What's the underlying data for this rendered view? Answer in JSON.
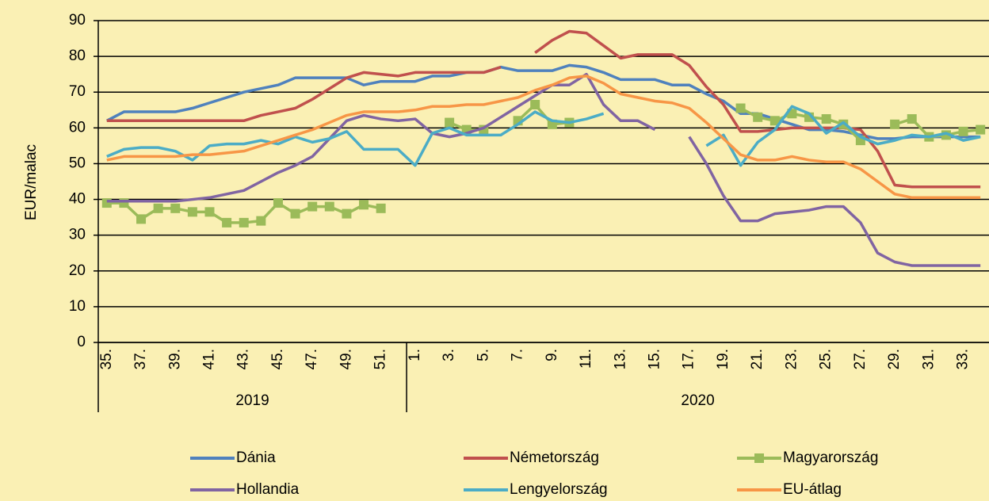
{
  "chart_data": {
    "type": "line",
    "y_axis_label": "EUR/malac",
    "ylim": [
      0,
      90
    ],
    "yticks": [
      0,
      10,
      20,
      30,
      40,
      50,
      60,
      70,
      80,
      90
    ],
    "grid": true,
    "legend_position": "bottom",
    "categories": [
      "35.",
      null,
      "37.",
      null,
      "39.",
      null,
      "41.",
      null,
      "43.",
      null,
      "45.",
      null,
      "47.",
      null,
      "49.",
      null,
      "51.",
      null,
      "1.",
      null,
      "3.",
      null,
      "5.",
      null,
      "7.",
      null,
      "9.",
      null,
      "11.",
      null,
      "13.",
      null,
      "15.",
      null,
      "17.",
      null,
      "19.",
      null,
      "21.",
      null,
      "23.",
      null,
      "25.",
      null,
      "27.",
      null,
      "29.",
      null,
      "31.",
      null,
      "33.",
      null
    ],
    "category_groups": [
      {
        "label": "2019",
        "size": 18
      },
      {
        "label": "2020",
        "size": 34
      }
    ],
    "series": [
      {
        "name": "Dánia",
        "color": "#4f81bd",
        "values": [
          62,
          64.5,
          64.5,
          64.5,
          64.5,
          65.5,
          67,
          68.5,
          70,
          71,
          72,
          74,
          74,
          74,
          74,
          72,
          73,
          73,
          73,
          74.5,
          74.5,
          75.5,
          75.5,
          77,
          76,
          76,
          76,
          77.5,
          77,
          75.5,
          73.5,
          73.5,
          73.5,
          72,
          72,
          69.5,
          67.5,
          64,
          64,
          62.5,
          61,
          59.5,
          59.5,
          59,
          58,
          57,
          57,
          57.5,
          57.5,
          57.5,
          57.5,
          57.5
        ]
      },
      {
        "name": "Németország",
        "color": "#c0504d",
        "values": [
          62,
          62,
          62,
          62,
          62,
          62,
          62,
          62,
          62,
          63.5,
          64.5,
          65.5,
          68,
          71,
          74,
          75.5,
          75,
          74.5,
          75.5,
          75.5,
          75.5,
          75.5,
          75.5,
          77,
          null,
          81,
          84.5,
          87,
          86.5,
          83,
          79.5,
          80.5,
          80.5,
          80.5,
          77.5,
          71.5,
          66.5,
          59,
          59,
          59.5,
          60,
          60,
          60,
          60,
          59.5,
          53.5,
          44,
          43.5,
          43.5,
          43.5,
          43.5,
          43.5
        ]
      },
      {
        "name": "Magyarország",
        "color": "#9bbb59",
        "marker": "square",
        "values": [
          39,
          39,
          34.5,
          37.5,
          37.5,
          36.5,
          36.5,
          33.5,
          33.5,
          34,
          39,
          36,
          38,
          38,
          36,
          38.5,
          37.5,
          null,
          null,
          null,
          61.5,
          59.5,
          59.5,
          null,
          62,
          66.5,
          61,
          61.5,
          null,
          null,
          null,
          null,
          null,
          null,
          null,
          null,
          null,
          65.5,
          63,
          62,
          64,
          63,
          62.5,
          61,
          56.5,
          null,
          61,
          62.5,
          57.5,
          58,
          59,
          59.5
        ]
      },
      {
        "name": "Hollandia",
        "color": "#8064a2",
        "values": [
          39.5,
          39.5,
          39.5,
          39.5,
          39.5,
          40,
          40.5,
          41.5,
          42.5,
          45,
          47.5,
          49.5,
          52,
          57,
          62,
          63.5,
          62.5,
          62,
          62.5,
          58.5,
          57.5,
          58.5,
          60,
          63,
          66,
          69,
          72,
          72,
          75,
          66.5,
          62,
          62,
          59.5,
          null,
          57.5,
          50,
          41,
          34,
          34,
          36,
          36.5,
          37,
          38,
          38,
          33.5,
          25,
          22.5,
          21.5,
          21.5,
          21.5,
          21.5,
          21.5
        ]
      },
      {
        "name": "Lengyelország",
        "color": "#4bacc6",
        "values": [
          52,
          54,
          54.5,
          54.5,
          53.5,
          51,
          55,
          55.5,
          55.5,
          56.5,
          55.5,
          57.5,
          56,
          57,
          59,
          54,
          54,
          54,
          49.5,
          58.5,
          60,
          58,
          58,
          58,
          61,
          64.5,
          62,
          61.5,
          62.5,
          64,
          null,
          null,
          null,
          null,
          null,
          55,
          58,
          49.5,
          56,
          59.5,
          66,
          64,
          58.5,
          61.5,
          57.5,
          55.5,
          56.5,
          58,
          57.5,
          58.5,
          56.5,
          57.5
        ]
      },
      {
        "name": "EU-átlag",
        "color": "#f79646",
        "values": [
          51,
          52,
          52,
          52,
          52,
          52.5,
          52.5,
          53,
          53.5,
          55,
          56.5,
          58,
          59.5,
          61.5,
          63.5,
          64.5,
          64.5,
          64.5,
          65,
          66,
          66,
          66.5,
          66.5,
          67.5,
          68.5,
          70.5,
          72,
          74,
          74.5,
          72.5,
          69.5,
          68.5,
          67.5,
          67,
          65.5,
          61.5,
          57,
          52.5,
          51,
          51,
          52,
          51,
          50.5,
          50.5,
          48.5,
          45,
          41.5,
          40.5,
          40.5,
          40.5,
          40.5,
          40.5
        ]
      }
    ]
  }
}
